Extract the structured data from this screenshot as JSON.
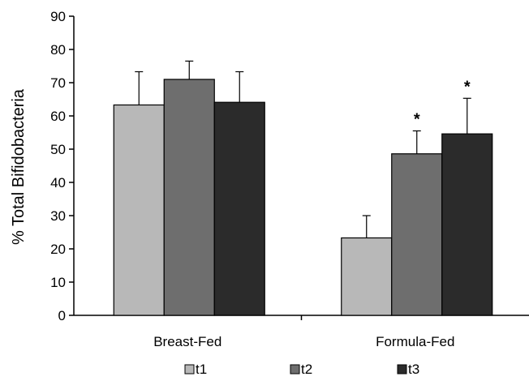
{
  "chart_data": {
    "type": "bar",
    "title": "",
    "xlabel": "",
    "ylabel": "% Total Bifidobacteria",
    "ylim": [
      0,
      90
    ],
    "yticks": [
      0,
      10,
      20,
      30,
      40,
      50,
      60,
      70,
      80,
      90
    ],
    "grid": false,
    "categories": [
      "Breast-Fed",
      "Formula-Fed"
    ],
    "series": [
      {
        "name": "t1",
        "values": [
          63.3,
          23.3
        ],
        "errors": [
          10.0,
          6.7
        ],
        "color": "#b8b8b8"
      },
      {
        "name": "t2",
        "values": [
          71.0,
          48.6
        ],
        "errors": [
          5.5,
          6.9
        ],
        "color": "#6e6e6e"
      },
      {
        "name": "t3",
        "values": [
          64.1,
          54.6
        ],
        "errors": [
          9.2,
          10.7
        ],
        "color": "#2b2b2b"
      }
    ],
    "annotations": [
      {
        "text": "*",
        "category": "Formula-Fed",
        "series": "t2"
      },
      {
        "text": "*",
        "category": "Formula-Fed",
        "series": "t3"
      }
    ],
    "legend_position": "bottom"
  }
}
